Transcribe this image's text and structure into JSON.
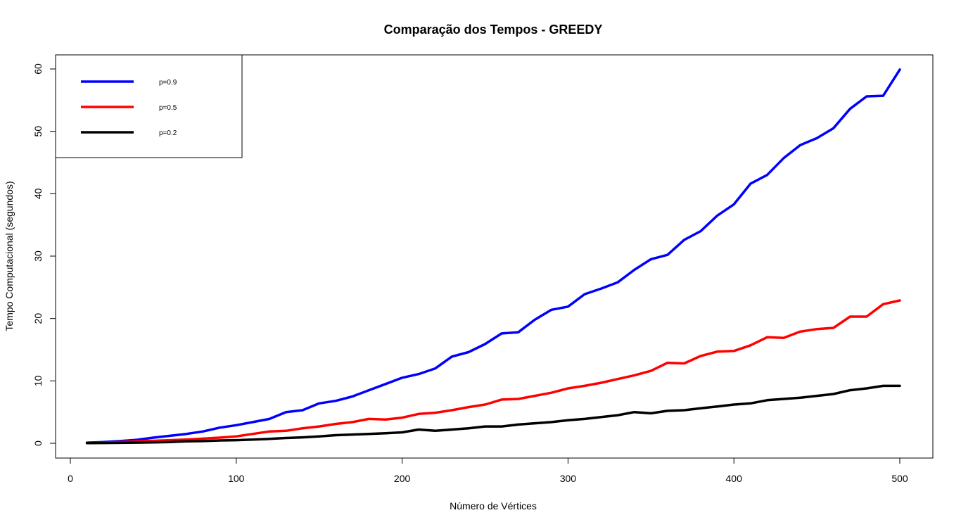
{
  "chart_data": {
    "type": "line",
    "title": "Comparação dos Tempos - GREEDY",
    "xlabel": "Número de Vértices",
    "ylabel": "Tempo Computacional (segundos)",
    "xlim": [
      0,
      520
    ],
    "ylim": [
      0,
      62
    ],
    "xticks": [
      "0",
      "100",
      "200",
      "300",
      "400",
      "500"
    ],
    "yticks": [
      "0",
      "10",
      "20",
      "30",
      "40",
      "50",
      "60"
    ],
    "xtick_values": [
      0,
      100,
      200,
      300,
      400,
      500
    ],
    "ytick_values": [
      0,
      10,
      20,
      30,
      40,
      50,
      60
    ],
    "grid": false,
    "legend_position": "top-left",
    "x": [
      10,
      20,
      30,
      40,
      50,
      60,
      70,
      80,
      90,
      100,
      110,
      120,
      130,
      140,
      150,
      160,
      170,
      180,
      190,
      200,
      210,
      220,
      230,
      240,
      250,
      260,
      270,
      280,
      290,
      300,
      310,
      320,
      330,
      340,
      350,
      360,
      370,
      380,
      390,
      400,
      410,
      420,
      430,
      440,
      450,
      460,
      470,
      480,
      490,
      500
    ],
    "series": [
      {
        "name": "p=0.9",
        "color": "#0000ff",
        "values": [
          0.1,
          0.2,
          0.35,
          0.55,
          0.9,
          1.2,
          1.5,
          1.9,
          2.5,
          2.9,
          3.4,
          3.9,
          5.0,
          5.3,
          6.4,
          6.8,
          7.5,
          8.5,
          9.5,
          10.5,
          11.1,
          12.0,
          13.9,
          14.6,
          15.9,
          17.6,
          17.8,
          19.8,
          21.4,
          21.9,
          23.9,
          24.8,
          25.8,
          27.8,
          29.5,
          30.2,
          32.6,
          34.0,
          36.5,
          38.3,
          41.6,
          43.0,
          45.7,
          47.8,
          48.9,
          50.5,
          53.6,
          55.6,
          55.7,
          59.9
        ]
      },
      {
        "name": "p=0.5",
        "color": "#ff0000",
        "values": [
          0.05,
          0.1,
          0.2,
          0.3,
          0.4,
          0.5,
          0.6,
          0.75,
          0.9,
          1.1,
          1.5,
          1.9,
          2.0,
          2.4,
          2.7,
          3.1,
          3.4,
          3.9,
          3.8,
          4.1,
          4.7,
          4.9,
          5.3,
          5.8,
          6.2,
          7.0,
          7.1,
          7.6,
          8.1,
          8.8,
          9.2,
          9.7,
          10.3,
          10.9,
          11.6,
          12.9,
          12.8,
          14.0,
          14.7,
          14.8,
          15.7,
          17.0,
          16.9,
          17.9,
          18.3,
          18.5,
          20.3,
          20.3,
          22.3,
          22.9
        ]
      },
      {
        "name": "p=0.2",
        "color": "#000000",
        "values": [
          0.02,
          0.04,
          0.07,
          0.1,
          0.15,
          0.2,
          0.3,
          0.35,
          0.45,
          0.5,
          0.6,
          0.7,
          0.85,
          0.95,
          1.1,
          1.3,
          1.4,
          1.5,
          1.6,
          1.75,
          2.2,
          2.0,
          2.2,
          2.4,
          2.7,
          2.7,
          3.0,
          3.2,
          3.4,
          3.7,
          3.9,
          4.2,
          4.5,
          5.0,
          4.8,
          5.2,
          5.3,
          5.6,
          5.9,
          6.2,
          6.4,
          6.9,
          7.1,
          7.3,
          7.6,
          7.9,
          8.5,
          8.8,
          9.2,
          9.2
        ]
      }
    ]
  }
}
